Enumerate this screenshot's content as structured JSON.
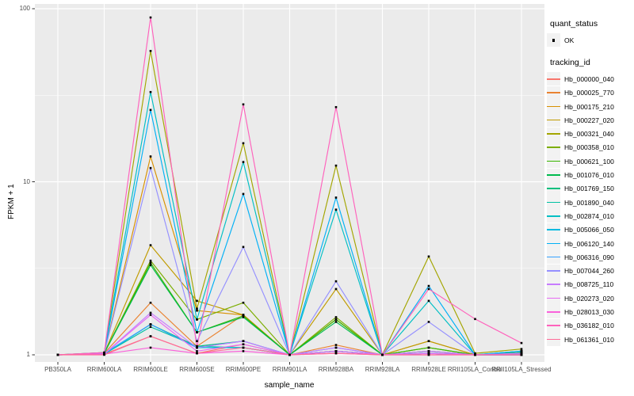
{
  "chart_data": {
    "type": "line",
    "title": "",
    "xlabel": "sample_name",
    "ylabel": "FPKM + 1",
    "y_scale": "log10",
    "y_ticks": [
      1,
      10,
      100
    ],
    "ylim": [
      0.93,
      110
    ],
    "grid": true,
    "legend_position": "right",
    "point_color": "#000000",
    "categories": [
      "PB350LA",
      "RRIM600LA",
      "RRIM600LE",
      "RRIM600SE",
      "RRIM600PE",
      "RRIM901LA",
      "RRIM928BA",
      "RRIM928LA",
      "RRIM928LE",
      "RRII105LA_Control",
      "RRII105LA_Stressed"
    ],
    "series": [
      {
        "name": "Hb_000000_040",
        "color": "#F8766D",
        "values": [
          1.0,
          1.01,
          1.28,
          1.02,
          1.15,
          1.0,
          1.05,
          1.0,
          1.02,
          1.0,
          1.0
        ]
      },
      {
        "name": "Hb_000025_770",
        "color": "#EA8331",
        "values": [
          1.0,
          1.02,
          2.0,
          1.12,
          1.7,
          1.0,
          1.14,
          1.0,
          1.05,
          1.0,
          1.02
        ]
      },
      {
        "name": "Hb_000175_210",
        "color": "#D89000",
        "values": [
          1.0,
          1.02,
          14.0,
          1.8,
          1.7,
          1.0,
          1.6,
          1.0,
          1.2,
          1.0,
          1.02
        ]
      },
      {
        "name": "Hb_000227_020",
        "color": "#C09B00",
        "values": [
          1.0,
          1.02,
          4.3,
          2.05,
          1.7,
          1.0,
          2.4,
          1.0,
          1.2,
          1.0,
          1.02
        ]
      },
      {
        "name": "Hb_000321_040",
        "color": "#A3A500",
        "values": [
          1.0,
          1.03,
          57.0,
          1.85,
          16.7,
          1.0,
          12.4,
          1.0,
          3.7,
          1.02,
          1.08
        ]
      },
      {
        "name": "Hb_000358_010",
        "color": "#7CAE00",
        "values": [
          1.0,
          1.02,
          3.5,
          1.6,
          2.0,
          1.0,
          1.65,
          1.0,
          1.1,
          1.0,
          1.05
        ]
      },
      {
        "name": "Hb_000621_100",
        "color": "#39B600",
        "values": [
          1.0,
          1.02,
          3.4,
          1.35,
          1.68,
          1.0,
          1.6,
          1.0,
          1.1,
          1.0,
          1.03
        ]
      },
      {
        "name": "Hb_001076_010",
        "color": "#00BB4E",
        "values": [
          1.0,
          1.02,
          3.3,
          1.35,
          1.65,
          1.0,
          1.55,
          1.0,
          1.05,
          1.0,
          1.03
        ]
      },
      {
        "name": "Hb_001769_150",
        "color": "#00BF7D",
        "values": [
          1.0,
          1.01,
          1.5,
          1.12,
          1.2,
          1.0,
          1.05,
          1.0,
          1.02,
          1.0,
          1.0
        ]
      },
      {
        "name": "Hb_001890_040",
        "color": "#00C1A3",
        "values": [
          1.0,
          1.01,
          1.45,
          1.12,
          1.1,
          1.0,
          1.05,
          1.0,
          1.02,
          1.0,
          1.0
        ]
      },
      {
        "name": "Hb_002874_010",
        "color": "#00BFC4",
        "values": [
          1.0,
          1.03,
          33.0,
          1.6,
          13.0,
          1.0,
          6.9,
          1.0,
          2.05,
          1.0,
          1.05
        ]
      },
      {
        "name": "Hb_005066_050",
        "color": "#00BAE0",
        "values": [
          1.0,
          1.01,
          1.5,
          1.1,
          1.1,
          1.0,
          1.05,
          1.0,
          1.02,
          1.0,
          1.0
        ]
      },
      {
        "name": "Hb_006120_140",
        "color": "#00B0F6",
        "values": [
          1.0,
          1.02,
          26.0,
          1.35,
          8.5,
          1.0,
          8.1,
          1.0,
          2.5,
          1.0,
          1.05
        ]
      },
      {
        "name": "Hb_006316_090",
        "color": "#35A2FF",
        "values": [
          1.0,
          1.02,
          1.5,
          1.1,
          1.2,
          1.0,
          1.1,
          1.0,
          1.02,
          1.0,
          1.0
        ]
      },
      {
        "name": "Hb_007044_260",
        "color": "#9590FF",
        "values": [
          1.0,
          1.02,
          12.0,
          1.2,
          4.2,
          1.0,
          2.66,
          1.0,
          1.55,
          1.0,
          1.02
        ]
      },
      {
        "name": "Hb_008725_110",
        "color": "#C77CFF",
        "values": [
          1.0,
          1.01,
          1.75,
          1.1,
          1.2,
          1.0,
          1.1,
          1.0,
          1.05,
          1.0,
          1.02
        ]
      },
      {
        "name": "Hb_020273_020",
        "color": "#E76BF3",
        "values": [
          1.0,
          1.01,
          1.7,
          1.05,
          1.15,
          1.0,
          1.05,
          1.0,
          1.02,
          1.0,
          1.0
        ]
      },
      {
        "name": "Hb_028013_030",
        "color": "#FA62DB",
        "values": [
          1.0,
          1.01,
          1.1,
          1.02,
          1.05,
          1.0,
          1.02,
          1.0,
          1.0,
          1.0,
          1.0
        ]
      },
      {
        "name": "Hb_036182_010",
        "color": "#FF62BC",
        "values": [
          1.0,
          1.03,
          89.0,
          1.1,
          28.0,
          1.0,
          27.0,
          1.0,
          2.4,
          1.61,
          1.17
        ]
      },
      {
        "name": "Hb_061361_010",
        "color": "#FF6A98",
        "values": [
          1.0,
          1.0,
          1.28,
          1.02,
          1.1,
          1.0,
          1.02,
          1.0,
          1.0,
          1.0,
          1.0
        ]
      }
    ],
    "legend": {
      "quant_status_title": "quant_status",
      "quant_status_items": [
        {
          "label": "OK"
        }
      ],
      "tracking_title": "tracking_id"
    }
  },
  "colors": {
    "panel_bg": "#EBEBEB",
    "grid_major": "#FFFFFF",
    "grid_minor": "#FFFFFF",
    "tick": "#333333",
    "tick_text": "#4D4D4D",
    "point": "#000000",
    "legend_key_bg": "#F2F2F2"
  }
}
